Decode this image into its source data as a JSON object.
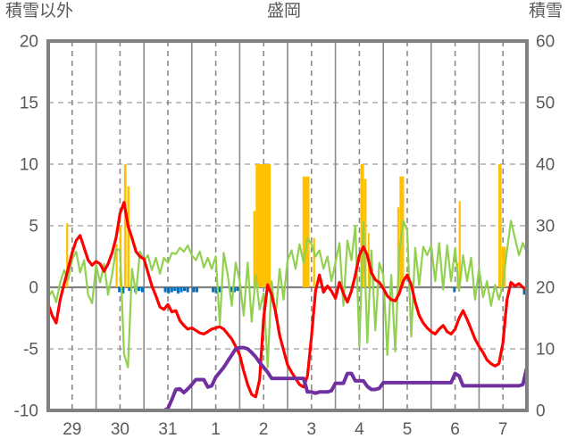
{
  "labels": {
    "title": "盛岡",
    "left_axis_title": "積雪以外",
    "right_axis_title": "積雪"
  },
  "chart_data": {
    "type": "line",
    "title": "盛岡",
    "x_axis": {
      "tick_labels": [
        "29",
        "30",
        "31",
        "1",
        "2",
        "3",
        "4",
        "5",
        "6",
        "7"
      ],
      "days": 10
    },
    "left_axis": {
      "title": "積雪以外",
      "range": [
        -10,
        20
      ],
      "ticks": [
        20,
        15,
        10,
        5,
        0,
        -5,
        -10
      ]
    },
    "right_axis": {
      "title": "積雪",
      "range": [
        0,
        60
      ],
      "ticks": [
        60,
        50,
        40,
        30,
        20,
        10,
        0
      ]
    },
    "step_hours": 2,
    "series": [
      {
        "name": "red-series",
        "color": "#FF0000",
        "axis": "left",
        "width": 3.2,
        "values": [
          -1.4,
          -2.3,
          -2.9,
          -1.0,
          0.3,
          1.5,
          2.8,
          3.8,
          4.2,
          3.2,
          2.2,
          1.8,
          2.1,
          1.9,
          1.3,
          1.9,
          2.8,
          4.0,
          6.0,
          6.9,
          5.0,
          4.0,
          2.9,
          2.5,
          2.3,
          1.2,
          0.1,
          -0.7,
          -1.6,
          -1.8,
          -1.4,
          -2.0,
          -1.9,
          -2.7,
          -3.1,
          -3.4,
          -3.3,
          -3.5,
          -3.7,
          -3.8,
          -3.6,
          -3.4,
          -3.3,
          -3.2,
          -3.4,
          -3.8,
          -4.2,
          -4.8,
          -5.5,
          -6.8,
          -7.9,
          -8.7,
          -8.9,
          -7.5,
          -2.5,
          0.2,
          -0.6,
          -2.0,
          -3.9,
          -5.1,
          -6.3,
          -6.9,
          -7.4,
          -7.9,
          -8.1,
          -7.2,
          -4.0,
          -0.3,
          1.0,
          -0.4,
          0.1,
          -0.3,
          -0.9,
          0.4,
          -0.5,
          -1.2,
          -0.3,
          1.0,
          2.6,
          3.3,
          2.6,
          1.2,
          0.6,
          0.4,
          -0.1,
          -0.7,
          -1.0,
          -1.1,
          -0.5,
          0.5,
          1.0,
          0.2,
          -1.2,
          -2.3,
          -2.9,
          -3.3,
          -3.6,
          -3.8,
          -3.4,
          -3.1,
          -3.6,
          -3.8,
          -3.4,
          -2.5,
          -1.9,
          -2.6,
          -3.4,
          -4.2,
          -4.8,
          -5.3,
          -5.9,
          -6.2,
          -6.4,
          -6.2,
          -4.5,
          -1.0,
          0.4,
          0.1,
          0.3,
          0.0,
          -0.3
        ]
      },
      {
        "name": "green-series",
        "color": "#92D050",
        "axis": "left",
        "width": 2.2,
        "values": [
          -0.8,
          -0.3,
          -1.2,
          0.4,
          1.4,
          0.6,
          2.3,
          2.9,
          1.2,
          2.2,
          -0.6,
          -1.3,
          1.8,
          0.4,
          1.9,
          -0.6,
          1.0,
          3.1,
          3.0,
          -5.4,
          -6.5,
          1.5,
          -0.5,
          2.9,
          2.2,
          2.6,
          1.4,
          2.4,
          1.1,
          2.4,
          2.0,
          2.8,
          2.7,
          3.2,
          2.9,
          3.4,
          2.6,
          2.2,
          2.9,
          1.6,
          2.4,
          1.5,
          2.5,
          -3.0,
          2.8,
          1.0,
          -1.5,
          2.0,
          0.5,
          -2.3,
          2.0,
          -2.8,
          1.0,
          -1.8,
          -0.5,
          -6.5,
          0.5,
          -2.4,
          1.5,
          -1.0,
          2.2,
          3.0,
          1.5,
          3.5,
          2.0,
          4.0,
          3.5,
          2.5,
          3.0,
          1.5,
          2.5,
          0.5,
          2.0,
          3.6,
          -1.5,
          3.8,
          2.2,
          5.0,
          -4.8,
          5.3,
          -4.5,
          3.0,
          -3.5,
          2.0,
          1.0,
          -5.5,
          1.0,
          -5.2,
          3.0,
          5.4,
          4.6,
          -4.0,
          3.2,
          0.2,
          3.3,
          2.6,
          3.4,
          0.5,
          3.6,
          -0.2,
          3.4,
          0.5,
          3.2,
          -0.3,
          2.6,
          0.5,
          2.4,
          -1.0,
          1.5,
          -0.8,
          0.5,
          -1.5,
          0.2,
          -1.0,
          0.3,
          3.0,
          5.4,
          4.0,
          2.6,
          3.6,
          2.8
        ]
      },
      {
        "name": "snow-depth-series",
        "color": "#7030A0",
        "axis": "right",
        "width": 4,
        "values": [
          0,
          0,
          0,
          0,
          0,
          0,
          0,
          0,
          0,
          0,
          0,
          0,
          0,
          0,
          0,
          0,
          0,
          0,
          0,
          0,
          0,
          0,
          0,
          0,
          0,
          0,
          0,
          0,
          0,
          0,
          0.3,
          1.8,
          3.4,
          3.5,
          2.9,
          3.5,
          4.2,
          5.0,
          5.0,
          5.0,
          3.8,
          4.0,
          5.4,
          6.2,
          7.0,
          8.0,
          9.0,
          10.0,
          10.2,
          10.2,
          10.0,
          9.4,
          8.7,
          7.8,
          7.0,
          6.2,
          5.2,
          5.2,
          5.2,
          5.2,
          5.2,
          5.2,
          5.2,
          5.2,
          5.2,
          3.0,
          3.0,
          2.8,
          3.0,
          3.0,
          3.0,
          3.2,
          4.4,
          4.4,
          4.4,
          6.0,
          6.0,
          4.8,
          4.8,
          4.8,
          3.9,
          3.4,
          3.4,
          3.6,
          4.5,
          4.5,
          4.5,
          4.5,
          4.5,
          4.5,
          4.5,
          4.5,
          4.5,
          4.5,
          4.5,
          4.5,
          4.5,
          4.5,
          4.5,
          4.5,
          4.5,
          4.5,
          6.0,
          5.6,
          4.0,
          4.0,
          4.0,
          4.0,
          4.0,
          4.0,
          4.0,
          4.0,
          4.0,
          4.0,
          4.0,
          4.0,
          4.0,
          4.0,
          4.0,
          4.2,
          7.0
        ]
      }
    ],
    "bars": [
      {
        "name": "orange-bars",
        "color": "#FFC000",
        "axis": "left",
        "baseline": 0,
        "items": [
          [
            9,
            5.2,
            1
          ],
          [
            33.8,
            3.5,
            1
          ],
          [
            35.8,
            5,
            1
          ],
          [
            38,
            10,
            1.2
          ],
          [
            39.6,
            8.2,
            1.2
          ],
          [
            102.8,
            6.2,
            1.2
          ],
          [
            104,
            10,
            7.5
          ],
          [
            127.5,
            9,
            3.5
          ],
          [
            132.8,
            4,
            1
          ],
          [
            156.5,
            10,
            1.8
          ],
          [
            158.4,
            8.8,
            1.2
          ],
          [
            160.3,
            4.4,
            0.8
          ],
          [
            175,
            6.5,
            1
          ],
          [
            176.1,
            9,
            2.3
          ],
          [
            204.8,
            2,
            0.8
          ],
          [
            205.8,
            7,
            1
          ],
          [
            225.7,
            10,
            1.6
          ],
          [
            227.4,
            3.3,
            2
          ]
        ]
      },
      {
        "name": "blue-marks",
        "color": "#0070C0",
        "axis": "left",
        "baseline": 0,
        "items": [
          [
            35,
            -0.4,
            1.4
          ],
          [
            36.8,
            -0.5,
            1.4
          ],
          [
            40,
            -0.3,
            1.4
          ],
          [
            43,
            -0.4,
            1.4
          ],
          [
            44.8,
            -0.3,
            1.4
          ],
          [
            46.5,
            -0.4,
            1.4
          ],
          [
            58,
            -0.4,
            1.4
          ],
          [
            59.6,
            -0.5,
            1.4
          ],
          [
            61.2,
            -0.4,
            1.4
          ],
          [
            62.8,
            -0.3,
            1.4
          ],
          [
            64.4,
            -0.5,
            1.4
          ],
          [
            66,
            -0.4,
            1.4
          ],
          [
            67.6,
            -0.3,
            1.4
          ],
          [
            69.2,
            -0.4,
            1.4
          ],
          [
            72.2,
            -0.4,
            1.4
          ],
          [
            73.8,
            -0.4,
            1.4
          ],
          [
            82,
            -0.4,
            1.4
          ],
          [
            83.6,
            -0.5,
            1.4
          ],
          [
            85.2,
            -0.4,
            1.4
          ],
          [
            91,
            -0.4,
            1.4
          ],
          [
            92.6,
            -0.4,
            1.4
          ],
          [
            94.2,
            -0.3,
            1.4
          ],
          [
            203,
            -0.4,
            1.2
          ],
          [
            238,
            -0.6,
            1.2
          ],
          [
            239.2,
            -0.6,
            1.2
          ]
        ]
      }
    ],
    "style": {
      "background": "#FFFFFF",
      "frame_color": "#808080",
      "vgrid_color": "#8a8a8a",
      "hgrid_color": "#ababab",
      "zero_line_color": "#808080",
      "text_color": "#595959"
    }
  }
}
